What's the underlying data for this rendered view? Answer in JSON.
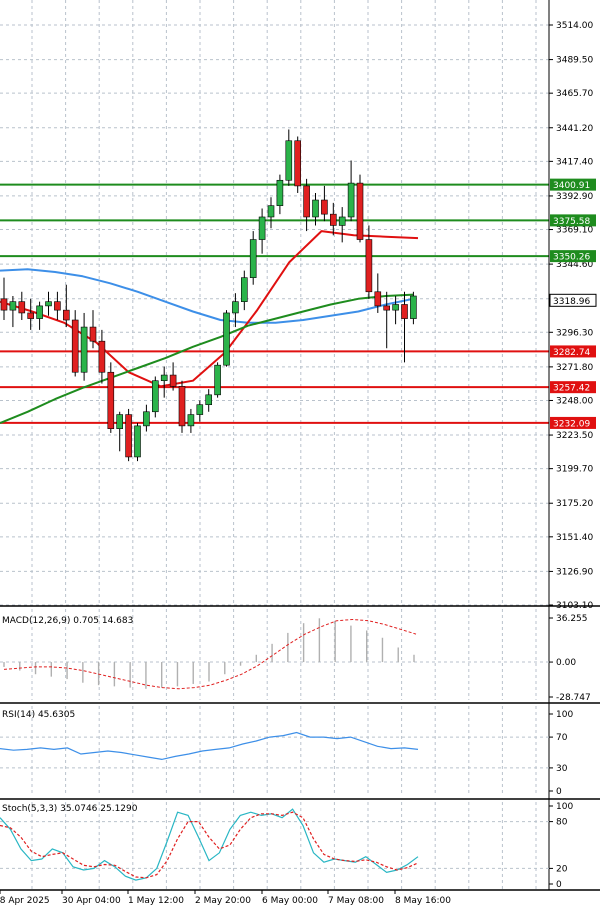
{
  "chart_data": {
    "type": "candlestick",
    "instrument": "",
    "price_axis": {
      "min": 3103.1,
      "max": 3514.0,
      "ticks": [
        "3514.00",
        "3489.50",
        "3465.70",
        "3441.20",
        "3417.40",
        "3392.90",
        "3369.10",
        "3344.60",
        "3320.10",
        "3296.30",
        "3271.80",
        "3248.00",
        "3223.50",
        "3199.70",
        "3175.20",
        "3151.40",
        "3126.90",
        "3103.10"
      ]
    },
    "current_price": "3318.96",
    "horizontal_lines": [
      {
        "value": "3400.91",
        "color": "#1e8c1e"
      },
      {
        "value": "3375.58",
        "color": "#1e8c1e"
      },
      {
        "value": "3350.26",
        "color": "#1e8c1e"
      },
      {
        "value": "3282.74",
        "color": "#e01010"
      },
      {
        "value": "3257.42",
        "color": "#e01010"
      },
      {
        "value": "3232.09",
        "color": "#e01010"
      }
    ],
    "time_labels": [
      "28 Apr 2025",
      "30 Apr 04:00",
      "1 May 12:00",
      "2 May 20:00",
      "6 May 00:00",
      "7 May 08:00",
      "8 May 16:00"
    ],
    "candles": [
      [
        3320,
        3335,
        3305,
        3312
      ],
      [
        3312,
        3322,
        3300,
        3318
      ],
      [
        3318,
        3325,
        3305,
        3310
      ],
      [
        3310,
        3320,
        3298,
        3306
      ],
      [
        3306,
        3318,
        3298,
        3315
      ],
      [
        3315,
        3325,
        3308,
        3318
      ],
      [
        3318,
        3325,
        3305,
        3312
      ],
      [
        3312,
        3330,
        3300,
        3305
      ],
      [
        3305,
        3312,
        3265,
        3268
      ],
      [
        3268,
        3310,
        3262,
        3300
      ],
      [
        3300,
        3312,
        3285,
        3290
      ],
      [
        3290,
        3298,
        3260,
        3268
      ],
      [
        3268,
        3275,
        3225,
        3228
      ],
      [
        3228,
        3240,
        3212,
        3238
      ],
      [
        3238,
        3242,
        3205,
        3208
      ],
      [
        3208,
        3232,
        3205,
        3230
      ],
      [
        3230,
        3245,
        3226,
        3240
      ],
      [
        3240,
        3265,
        3236,
        3262
      ],
      [
        3262,
        3272,
        3250,
        3266
      ],
      [
        3266,
        3275,
        3255,
        3258
      ],
      [
        3258,
        3262,
        3225,
        3230
      ],
      [
        3230,
        3242,
        3225,
        3238
      ],
      [
        3238,
        3248,
        3233,
        3245
      ],
      [
        3245,
        3256,
        3240,
        3252
      ],
      [
        3252,
        3275,
        3250,
        3273
      ],
      [
        3273,
        3312,
        3272,
        3310
      ],
      [
        3310,
        3324,
        3300,
        3318
      ],
      [
        3318,
        3340,
        3312,
        3335
      ],
      [
        3335,
        3368,
        3330,
        3362
      ],
      [
        3362,
        3384,
        3352,
        3378
      ],
      [
        3378,
        3392,
        3370,
        3386
      ],
      [
        3386,
        3408,
        3380,
        3404
      ],
      [
        3404,
        3440,
        3400,
        3432
      ],
      [
        3432,
        3435,
        3395,
        3400
      ],
      [
        3400,
        3405,
        3368,
        3378
      ],
      [
        3378,
        3395,
        3372,
        3390
      ],
      [
        3390,
        3400,
        3375,
        3380
      ],
      [
        3380,
        3388,
        3365,
        3372
      ],
      [
        3372,
        3385,
        3360,
        3378
      ],
      [
        3378,
        3418,
        3375,
        3402
      ],
      [
        3402,
        3408,
        3360,
        3362
      ],
      [
        3362,
        3372,
        3320,
        3325
      ],
      [
        3325,
        3338,
        3310,
        3315
      ],
      [
        3315,
        3325,
        3285,
        3312
      ],
      [
        3312,
        3322,
        3302,
        3316
      ],
      [
        3316,
        3325,
        3275,
        3306
      ],
      [
        3306,
        3325,
        3302,
        3322
      ]
    ],
    "overlays": [
      {
        "name": "",
        "color": "#3d8fe8",
        "values": [
          3340,
          3341,
          3339,
          3336,
          3331,
          3325,
          3318,
          3311,
          3305,
          3303,
          3303,
          3305,
          3308,
          3311,
          3316,
          3320
        ]
      },
      {
        "name": "",
        "color": "#e01010",
        "values": [
          3318,
          3311,
          3303,
          3289,
          3268,
          3258,
          3262,
          3282,
          3312,
          3346,
          3368,
          3365,
          3364,
          3363
        ]
      },
      {
        "name": "",
        "color": "#1e8c1e",
        "values": [
          3232,
          3240,
          3249,
          3257,
          3264,
          3271,
          3278,
          3286,
          3293,
          3301,
          3306,
          3311,
          3316,
          3320,
          3322,
          3323
        ]
      }
    ],
    "macd": {
      "title": "MACD(12,26,9) 0.705 14.683",
      "ticks": [
        "36.255",
        "0.00",
        "-28.747"
      ],
      "min": -28.747,
      "max": 36.255,
      "histogram": [
        -4,
        -7,
        -10,
        -12,
        -14,
        -17,
        -19,
        -20,
        -21,
        -22,
        -21,
        -20,
        -18,
        -16,
        -10,
        -3,
        6,
        15,
        24,
        32,
        36,
        34,
        30,
        26,
        20,
        12,
        6
      ],
      "signal": [
        -6,
        -5,
        -4,
        -4,
        -5,
        -7,
        -10,
        -13,
        -16,
        -19,
        -21,
        -22,
        -21,
        -19,
        -15,
        -10,
        -3,
        6,
        15,
        23,
        29,
        34,
        35,
        34,
        31,
        27,
        23
      ]
    },
    "rsi": {
      "title": "RSI(14) 45.6305",
      "ticks": [
        "100",
        "70",
        "30",
        "0"
      ],
      "values": [
        55,
        53,
        54,
        56,
        54,
        56,
        48,
        50,
        52,
        50,
        47,
        44,
        41,
        45,
        48,
        52,
        54,
        56,
        61,
        65,
        70,
        72,
        76,
        70,
        70,
        68,
        70,
        64,
        58,
        55,
        56,
        54
      ]
    },
    "stoch": {
      "title": "Stoch(5,3,3) 35.0746 25.1290",
      "ticks": [
        "100",
        "80",
        "20",
        "0"
      ],
      "k": [
        85,
        70,
        45,
        30,
        32,
        45,
        40,
        22,
        18,
        20,
        30,
        22,
        10,
        5,
        8,
        20,
        55,
        92,
        88,
        60,
        30,
        40,
        70,
        88,
        92,
        88,
        90,
        85,
        96,
        75,
        40,
        28,
        32,
        30,
        28,
        35,
        25,
        15,
        18,
        25,
        35
      ],
      "d": [
        75,
        72,
        60,
        42,
        35,
        38,
        40,
        32,
        24,
        22,
        25,
        24,
        16,
        9,
        8,
        12,
        30,
        58,
        80,
        80,
        60,
        45,
        50,
        70,
        85,
        90,
        90,
        88,
        92,
        85,
        58,
        38,
        32,
        30,
        29,
        31,
        28,
        22,
        18,
        21,
        27
      ]
    }
  }
}
